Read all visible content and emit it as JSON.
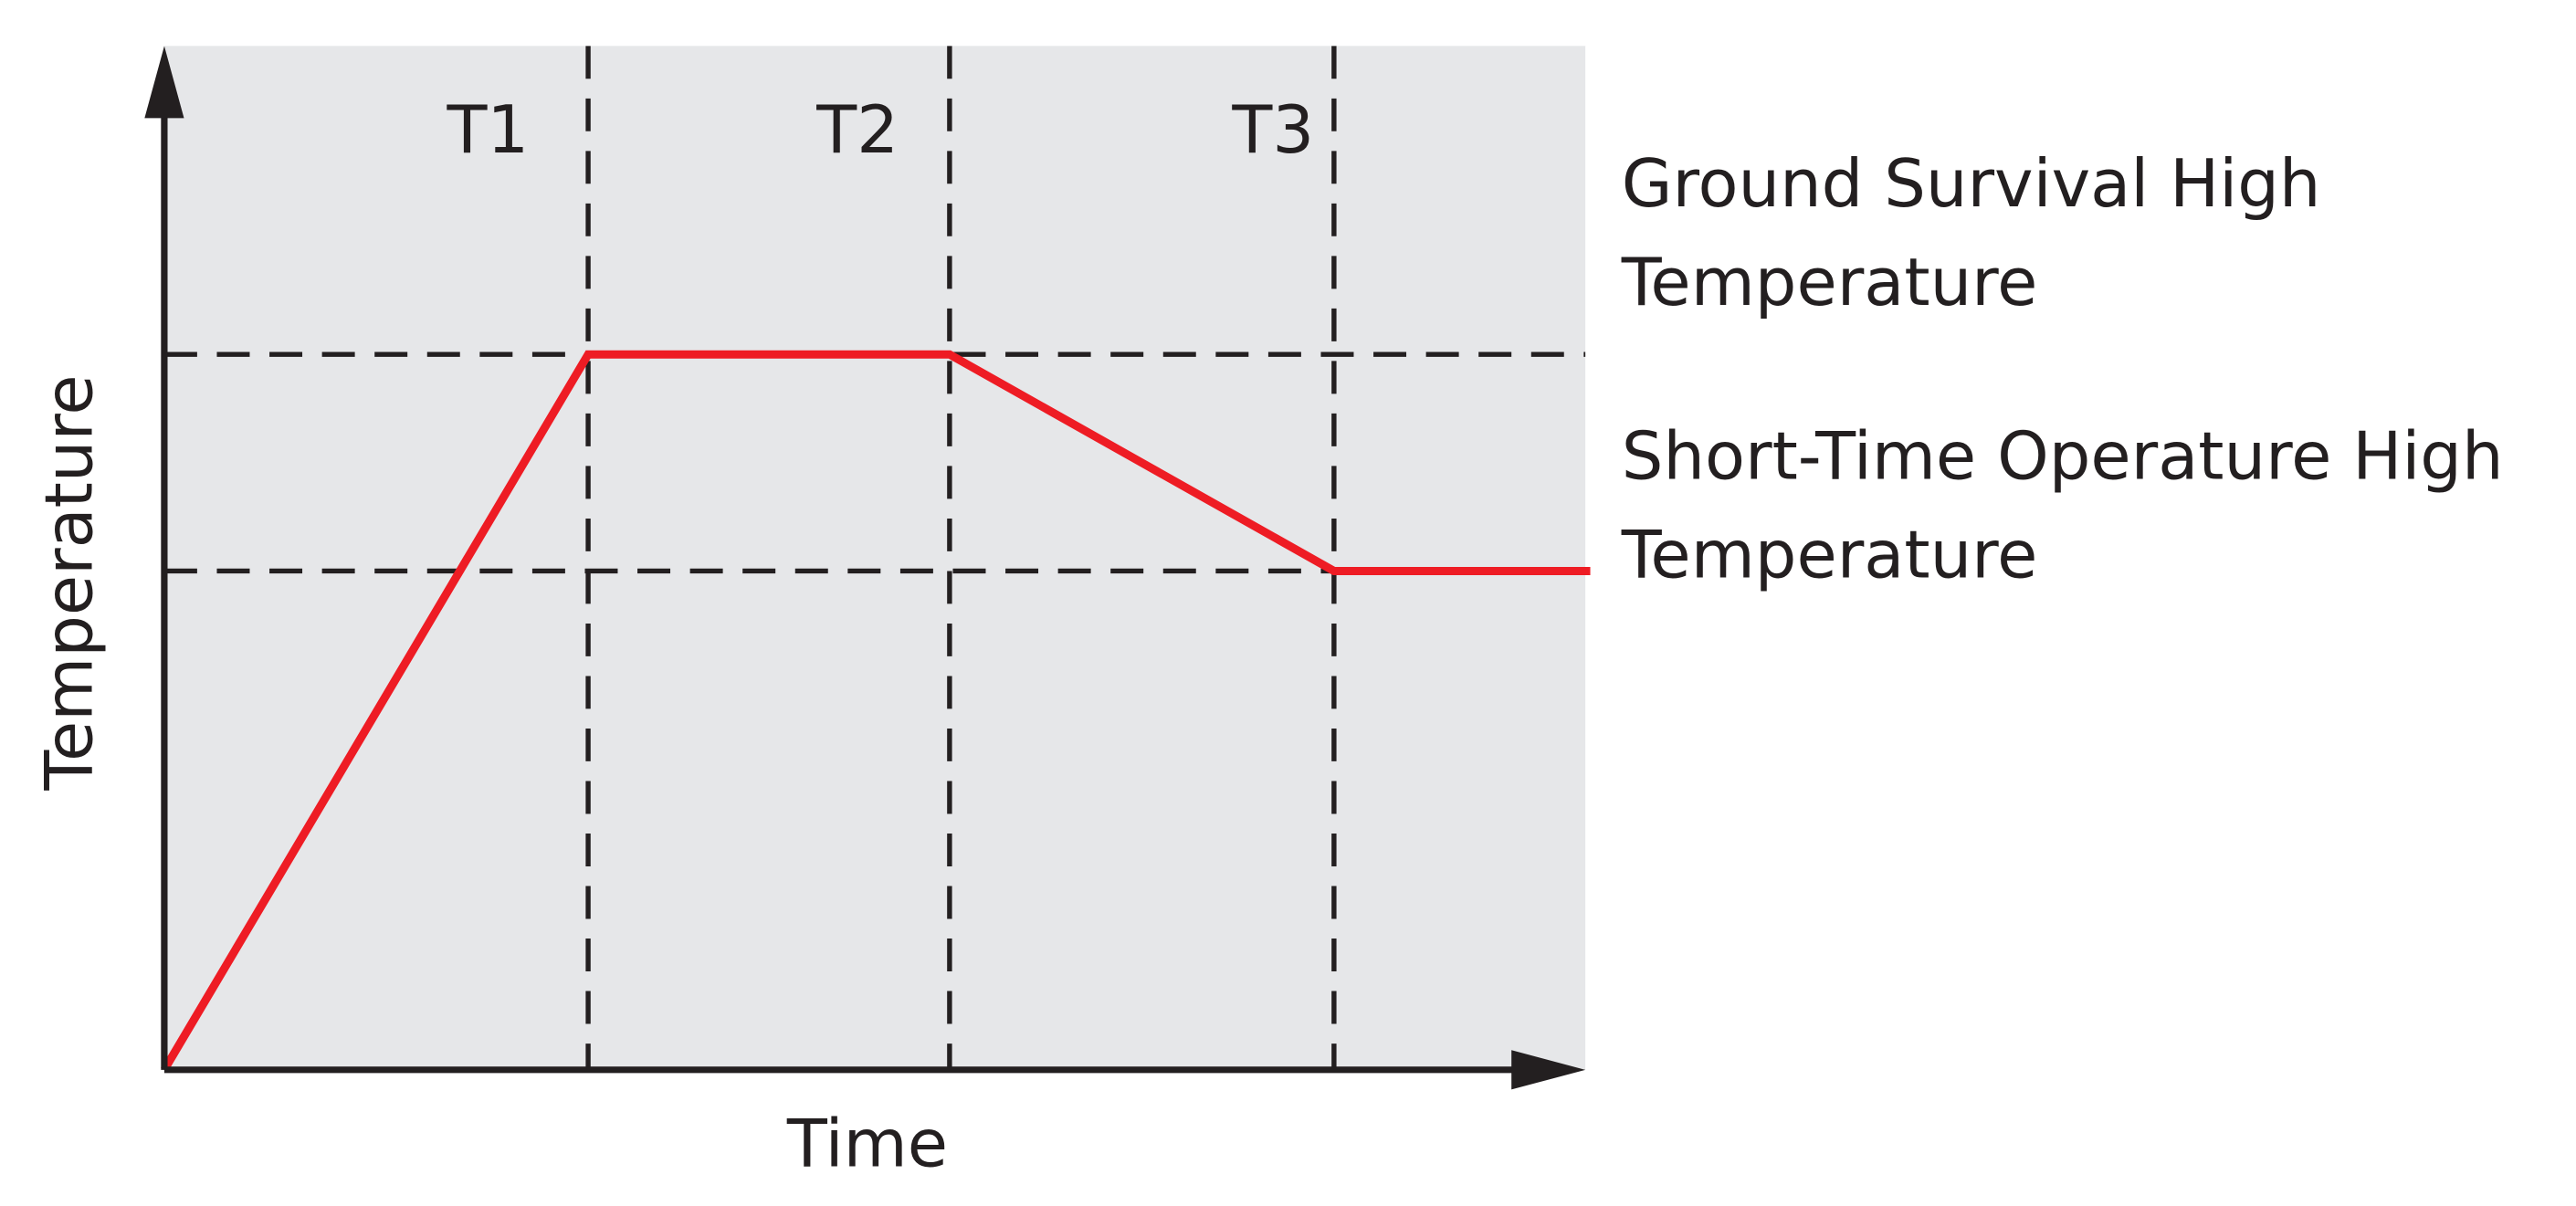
{
  "axes": {
    "x_label": "Time",
    "y_label": "Temperature"
  },
  "time_marks": [
    "T1",
    "T2",
    "T3"
  ],
  "levels": [
    {
      "lines": [
        "Ground Survival High",
        "Temperature"
      ]
    },
    {
      "lines": [
        "Short-Time Operature High",
        "Temperature"
      ]
    }
  ]
}
